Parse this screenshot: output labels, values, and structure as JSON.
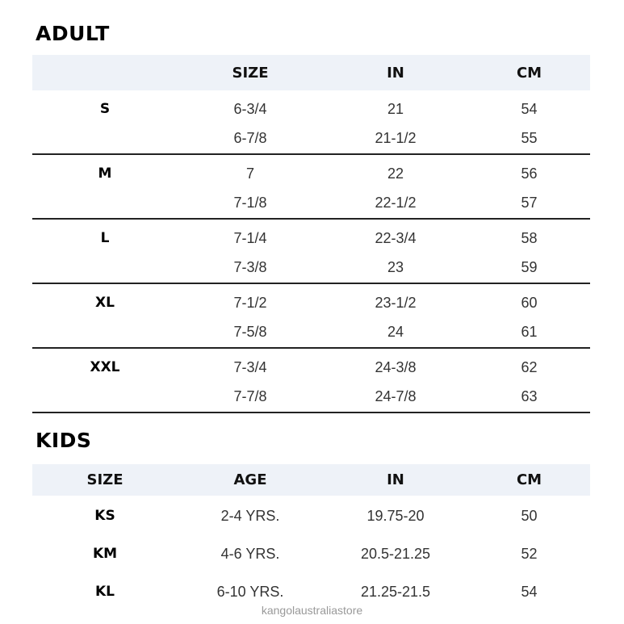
{
  "adult": {
    "title": "ADULT",
    "headers": [
      "",
      "SIZE",
      "IN",
      "CM"
    ],
    "groups": [
      {
        "label": "S",
        "rows": [
          [
            "6-3/4",
            "21",
            "54"
          ],
          [
            "6-7/8",
            "21-1/2",
            "55"
          ]
        ]
      },
      {
        "label": "M",
        "rows": [
          [
            "7",
            "22",
            "56"
          ],
          [
            "7-1/8",
            "22-1/2",
            "57"
          ]
        ]
      },
      {
        "label": "L",
        "rows": [
          [
            "7-1/4",
            "22-3/4",
            "58"
          ],
          [
            "7-3/8",
            "23",
            "59"
          ]
        ]
      },
      {
        "label": "XL",
        "rows": [
          [
            "7-1/2",
            "23-1/2",
            "60"
          ],
          [
            "7-5/8",
            "24",
            "61"
          ]
        ]
      },
      {
        "label": "XXL",
        "rows": [
          [
            "7-3/4",
            "24-3/8",
            "62"
          ],
          [
            "7-7/8",
            "24-7/8",
            "63"
          ]
        ]
      }
    ]
  },
  "kids": {
    "title": "KIDS",
    "headers": [
      "SIZE",
      "AGE",
      "IN",
      "CM"
    ],
    "rows": [
      [
        "KS",
        "2-4 YRS.",
        "19.75-20",
        "50"
      ],
      [
        "KM",
        "4-6 YRS.",
        "20.5-21.25",
        "52"
      ],
      [
        "KL",
        "6-10 YRS.",
        "21.25-21.5",
        "54"
      ]
    ]
  },
  "watermark": "kangolaustraliastore",
  "colors": {
    "header_band": "#eef2f8",
    "divider": "#222222"
  }
}
